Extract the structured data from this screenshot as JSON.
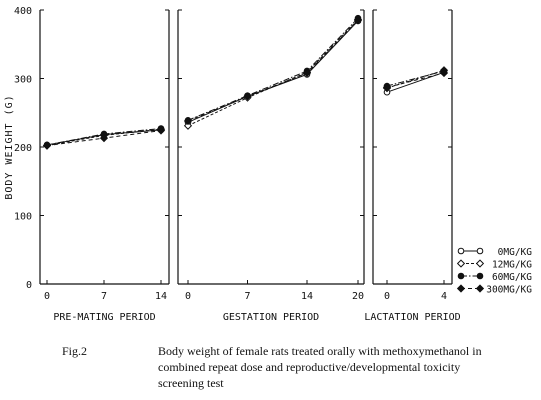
{
  "chart_data": {
    "type": "line",
    "ylabel": "BODY WEIGHT (G)",
    "ylim": [
      0,
      400
    ],
    "yticks": [
      "0",
      "100",
      "200",
      "300",
      "400"
    ],
    "panels": [
      {
        "xlabel": "PRE-MATING PERIOD",
        "x": [
          0,
          7,
          14
        ],
        "xticks": [
          "0",
          "7",
          "14"
        ],
        "series": [
          {
            "name": "0MG/KG",
            "values": [
              203,
              218,
              225
            ]
          },
          {
            "name": "12MG/KG",
            "values": [
              202,
              217,
              226
            ]
          },
          {
            "name": "60MG/KG",
            "values": [
              203,
              219,
              227
            ]
          },
          {
            "name": "300MG/KG",
            "values": [
              202,
              213,
              224
            ]
          }
        ]
      },
      {
        "xlabel": "GESTATION PERIOD",
        "x": [
          0,
          7,
          14,
          20
        ],
        "xticks": [
          "0",
          "7",
          "14",
          "20"
        ],
        "series": [
          {
            "name": "0MG/KG",
            "values": [
              236,
              274,
              306,
              384
            ]
          },
          {
            "name": "12MG/KG",
            "values": [
              231,
              272,
              309,
              386
            ]
          },
          {
            "name": "60MG/KG",
            "values": [
              239,
              275,
              311,
              388
            ]
          },
          {
            "name": "300MG/KG",
            "values": [
              238,
              274,
              308,
              385
            ]
          }
        ]
      },
      {
        "xlabel": "LACTATION PERIOD",
        "x": [
          0,
          4
        ],
        "xticks": [
          "0",
          "4"
        ],
        "series": [
          {
            "name": "0MG/KG",
            "values": [
              280,
              309
            ]
          },
          {
            "name": "12MG/KG",
            "values": [
              286,
              312
            ]
          },
          {
            "name": "60MG/KG",
            "values": [
              289,
              311
            ]
          },
          {
            "name": "300MG/KG",
            "values": [
              287,
              308
            ]
          }
        ]
      }
    ],
    "legend": [
      {
        "label": "0MG/KG",
        "marker": "open-circle",
        "line": "solid"
      },
      {
        "label": "12MG/KG",
        "marker": "open-diamond",
        "line": "dash"
      },
      {
        "label": "60MG/KG",
        "marker": "filled-circle",
        "line": "dash-dot"
      },
      {
        "label": "300MG/KG",
        "marker": "filled-diamond",
        "line": "dashed"
      }
    ],
    "legend_position": "right",
    "grid": false
  },
  "caption": {
    "label": "Fig.2",
    "text": "Body weight of female rats treated orally with methoxymethanol in combined repeat dose and reproductive/developmental toxicity screening test"
  }
}
